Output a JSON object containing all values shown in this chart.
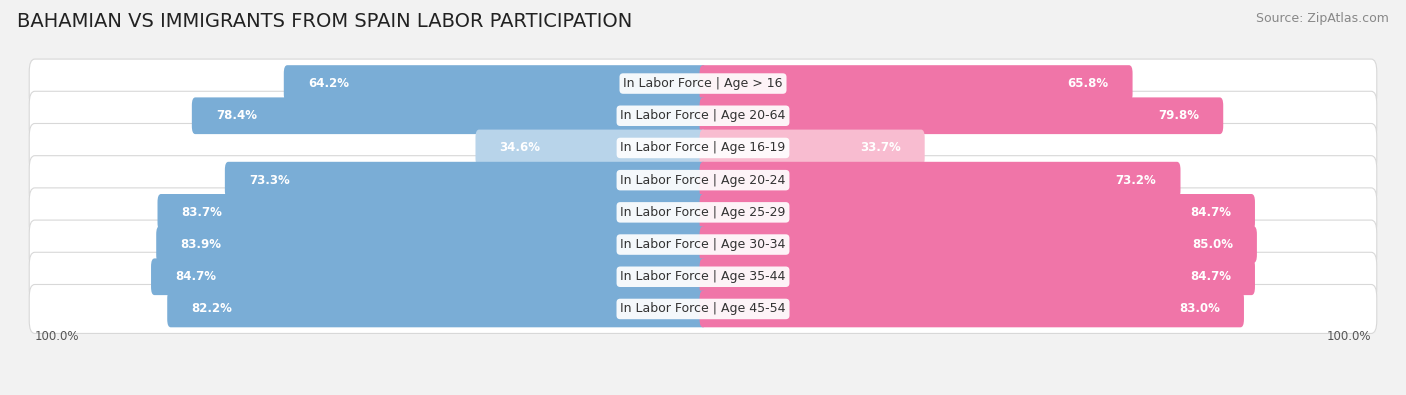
{
  "title": "BAHAMIAN VS IMMIGRANTS FROM SPAIN LABOR PARTICIPATION",
  "source": "Source: ZipAtlas.com",
  "categories": [
    "In Labor Force | Age > 16",
    "In Labor Force | Age 20-64",
    "In Labor Force | Age 16-19",
    "In Labor Force | Age 20-24",
    "In Labor Force | Age 25-29",
    "In Labor Force | Age 30-34",
    "In Labor Force | Age 35-44",
    "In Labor Force | Age 45-54"
  ],
  "bahamian": [
    64.2,
    78.4,
    34.6,
    73.3,
    83.7,
    83.9,
    84.7,
    82.2
  ],
  "spain": [
    65.8,
    79.8,
    33.7,
    73.2,
    84.7,
    85.0,
    84.7,
    83.0
  ],
  "bahamian_color": "#7aadd6",
  "bahamian_color_light": "#b8d4ea",
  "spain_color": "#f075a8",
  "spain_color_light": "#f8bcd0",
  "bg_color": "#f2f2f2",
  "bar_bg_color": "#ffffff",
  "max_val": 100.0,
  "title_fontsize": 14,
  "label_fontsize": 9,
  "value_fontsize": 8.5,
  "legend_fontsize": 10,
  "source_fontsize": 9
}
